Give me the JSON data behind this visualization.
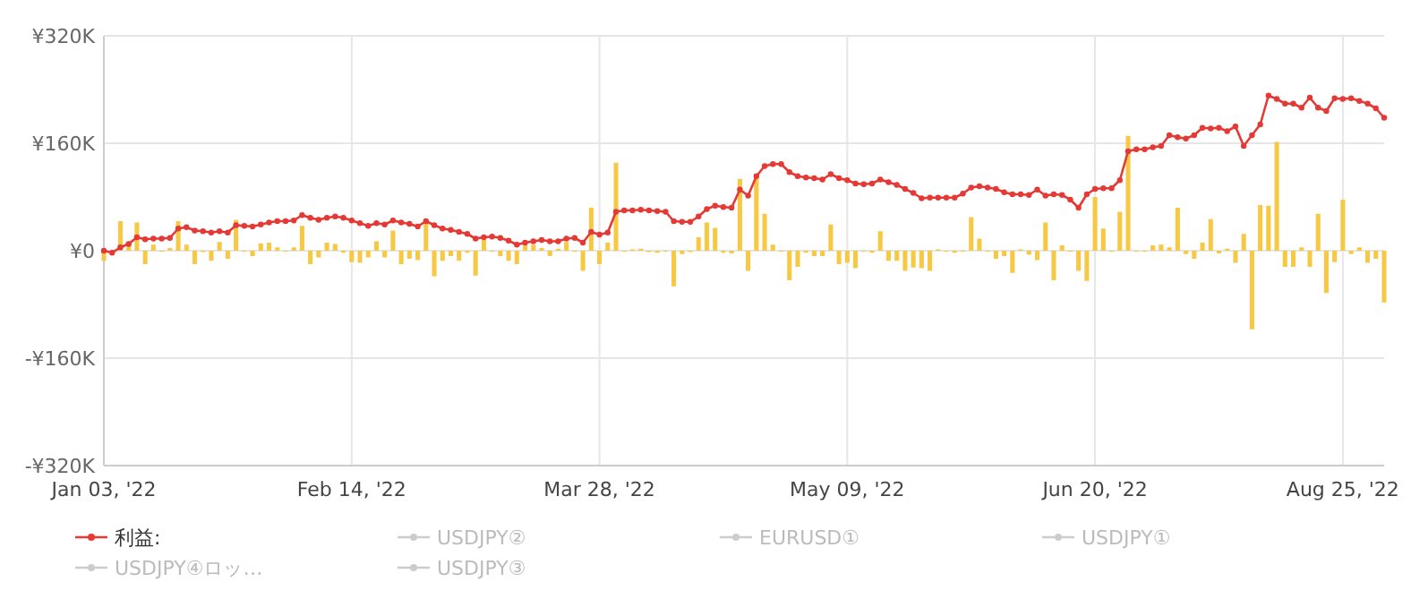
{
  "chart_data": {
    "type": "bar",
    "categories": [
      "Jan 03, '22",
      null,
      null,
      null,
      null,
      null,
      null,
      null,
      null,
      null,
      null,
      null,
      null,
      null,
      null,
      null,
      null,
      null,
      null,
      null,
      null,
      null,
      null,
      null,
      null,
      null,
      null,
      null,
      null,
      null,
      "Feb 14, '22",
      null,
      null,
      null,
      null,
      null,
      null,
      null,
      null,
      null,
      null,
      null,
      null,
      null,
      null,
      null,
      null,
      null,
      null,
      null,
      null,
      null,
      null,
      null,
      null,
      null,
      null,
      null,
      null,
      null,
      "Mar 28, '22",
      null,
      null,
      null,
      null,
      null,
      null,
      null,
      null,
      null,
      null,
      null,
      null,
      null,
      null,
      null,
      null,
      null,
      null,
      null,
      null,
      null,
      null,
      null,
      null,
      null,
      null,
      null,
      null,
      null,
      "May 09, '22",
      null,
      null,
      null,
      null,
      null,
      null,
      null,
      null,
      null,
      null,
      null,
      null,
      null,
      null,
      null,
      null,
      null,
      null,
      null,
      null,
      null,
      null,
      null,
      null,
      null,
      null,
      null,
      null,
      null,
      "Jun 20, '22",
      null,
      null,
      null,
      null,
      null,
      null,
      null,
      null,
      null,
      null,
      null,
      null,
      null,
      null,
      null,
      null,
      null,
      null,
      null,
      null,
      null,
      null,
      null,
      null,
      null,
      null,
      null,
      null,
      null,
      "Aug 25, '22",
      null,
      null,
      null,
      null,
      null
    ],
    "ylim": [
      -320000,
      320000
    ],
    "yticks": [
      {
        "value": -320000,
        "label": "-¥320K"
      },
      {
        "value": -160000,
        "label": "-¥160K"
      },
      {
        "value": 0,
        "label": "¥0"
      },
      {
        "value": 160000,
        "label": "¥160K"
      },
      {
        "value": 320000,
        "label": "¥320K"
      }
    ],
    "grid": true,
    "legend": "bottom",
    "series": [
      {
        "color": "#f7c843",
        "values": [
          -15000,
          0,
          44000,
          10000,
          42000,
          -20000,
          9000,
          0,
          4000,
          44000,
          9000,
          -20000,
          -2000,
          -15000,
          13000,
          -12000,
          46000,
          0,
          -8000,
          11000,
          12000,
          5000,
          0,
          5000,
          37000,
          -20000,
          -10000,
          12000,
          10000,
          -3000,
          -17000,
          -18000,
          -10000,
          14000,
          -10000,
          30000,
          -20000,
          -12000,
          -14000,
          43000,
          -38000,
          -15000,
          -8000,
          -15000,
          -3000,
          -37000,
          16000,
          0,
          -8000,
          -15000,
          -20000,
          11000,
          9000,
          4000,
          -8000,
          3000,
          13000,
          0,
          -30000,
          64000,
          -20000,
          12000,
          131000,
          0,
          2000,
          3000,
          -2000,
          -3000,
          0,
          -53000,
          -5000,
          -2000,
          20000,
          42000,
          34000,
          -3000,
          -4000,
          107000,
          -30000,
          114000,
          55000,
          9000,
          0,
          -44000,
          -24000,
          -3000,
          -8000,
          -8000,
          39000,
          -20000,
          -18000,
          -26000,
          0,
          -3000,
          29000,
          -15000,
          -15000,
          -30000,
          -25000,
          -26000,
          -30000,
          2000,
          0,
          -3000,
          0,
          50000,
          18000,
          0,
          -12000,
          -8000,
          -33000,
          2000,
          -6000,
          -14000,
          42000,
          -44000,
          8000,
          0,
          -30000,
          -45000,
          80000,
          33000,
          0,
          58000,
          171000,
          0,
          0,
          8000,
          9000,
          5000,
          64000,
          -5000,
          -12000,
          12000,
          47000,
          -4000,
          3000,
          -18000,
          25000,
          -117000,
          68000,
          67000,
          162000,
          -24000,
          -24000,
          5000,
          -24000,
          55000,
          -63000,
          -17000,
          76000,
          -5000,
          5000,
          -18000,
          -12000,
          -77000
        ]
      },
      {
        "type": "line",
        "name": "利益:",
        "color": "#e53935",
        "marker": "circle",
        "line_style": "solid",
        "values": [
          0,
          -3000,
          5000,
          10000,
          20000,
          17000,
          18000,
          18000,
          19000,
          33000,
          35000,
          30000,
          29000,
          27000,
          29000,
          27000,
          38000,
          37000,
          36000,
          39000,
          42000,
          44000,
          44000,
          45000,
          53000,
          49000,
          46000,
          49000,
          51000,
          49000,
          45000,
          41000,
          37000,
          41000,
          39000,
          45000,
          42000,
          40000,
          36000,
          44000,
          38000,
          33000,
          31000,
          28000,
          25000,
          18000,
          20000,
          21000,
          19000,
          15000,
          9000,
          12000,
          14000,
          16000,
          14000,
          14000,
          18000,
          19000,
          12000,
          28000,
          24000,
          27000,
          58000,
          60000,
          60000,
          61000,
          60000,
          59000,
          58000,
          44000,
          43000,
          43000,
          51000,
          62000,
          67000,
          65000,
          64000,
          91000,
          82000,
          111000,
          126000,
          129000,
          129000,
          117000,
          111000,
          109000,
          108000,
          106000,
          114000,
          108000,
          105000,
          100000,
          99000,
          100000,
          106000,
          102000,
          98000,
          92000,
          86000,
          78000,
          79000,
          79000,
          79000,
          79000,
          85000,
          94000,
          96000,
          94000,
          92000,
          87000,
          84000,
          84000,
          83000,
          91000,
          82000,
          84000,
          83000,
          76000,
          64000,
          84000,
          92000,
          93000,
          93000,
          105000,
          148000,
          151000,
          151000,
          154000,
          156000,
          172000,
          169000,
          167000,
          172000,
          183000,
          182000,
          183000,
          178000,
          185000,
          156000,
          172000,
          188000,
          231000,
          226000,
          219000,
          219000,
          213000,
          228000,
          213000,
          208000,
          227000,
          226000,
          227000,
          223000,
          219000,
          212000,
          198000
        ]
      },
      {
        "type": "line",
        "name": "USDJPY②",
        "color": "#cccccc",
        "marker": "circle",
        "values": [
          null,
          null,
          null,
          null,
          null,
          null,
          null,
          null,
          null,
          null,
          null,
          null,
          null,
          null,
          null,
          null,
          null,
          null,
          null,
          null,
          null,
          null,
          null,
          null,
          null,
          null,
          null,
          null,
          null,
          null,
          null,
          null,
          null,
          null,
          null,
          null,
          null,
          null,
          null,
          null,
          null,
          null,
          null,
          null,
          null,
          null,
          null,
          null,
          null,
          null,
          null,
          null,
          null,
          null,
          null,
          null,
          null,
          null,
          null,
          null,
          null,
          null,
          null,
          null,
          null,
          null,
          null,
          null,
          null,
          null,
          null,
          null,
          null,
          null,
          null,
          null,
          null,
          null,
          null,
          null,
          null,
          null,
          null,
          null,
          null,
          null,
          null,
          null,
          null,
          null,
          null,
          null,
          null,
          null,
          null,
          null,
          null,
          null,
          null,
          null,
          null,
          null,
          null,
          null,
          null,
          null,
          null,
          null,
          null,
          null,
          null,
          null,
          null,
          null,
          null,
          null,
          null,
          null,
          null,
          null,
          null,
          null,
          null,
          null,
          null,
          null,
          null,
          null,
          null,
          null,
          null,
          null,
          null,
          null,
          null,
          null,
          null,
          null,
          null,
          null,
          null,
          null,
          null,
          null,
          null,
          null,
          null,
          null,
          null,
          null,
          null,
          null,
          null,
          null,
          null,
          null
        ]
      },
      {
        "type": "line",
        "name": "EURUSD①",
        "color": "#cccccc",
        "marker": "circle",
        "values": [
          null,
          null,
          null,
          null,
          null,
          null,
          null,
          null,
          null,
          null,
          null,
          null,
          null,
          null,
          null,
          null,
          null,
          null,
          null,
          null,
          null,
          null,
          null,
          null,
          null,
          null,
          null,
          null,
          null,
          null,
          null,
          null,
          null,
          null,
          null,
          null,
          null,
          null,
          null,
          null,
          null,
          null,
          null,
          null,
          null,
          null,
          null,
          null,
          null,
          null,
          null,
          null,
          null,
          null,
          null,
          null,
          null,
          null,
          null,
          null,
          null,
          null,
          null,
          null,
          null,
          null,
          null,
          null,
          null,
          null,
          null,
          null,
          null,
          null,
          null,
          null,
          null,
          null,
          null,
          null,
          null,
          null,
          null,
          null,
          null,
          null,
          null,
          null,
          null,
          null,
          null,
          null,
          null,
          null,
          null,
          null,
          null,
          null,
          null,
          null,
          null,
          null,
          null,
          null,
          null,
          null,
          null,
          null,
          null,
          null,
          null,
          null,
          null,
          null,
          null,
          null,
          null,
          null,
          null,
          null,
          null,
          null,
          null,
          null,
          null,
          null,
          null,
          null,
          null,
          null,
          null,
          null,
          null,
          null,
          null,
          null,
          null,
          null,
          null,
          null,
          null,
          null,
          null,
          null,
          null,
          null,
          null,
          null,
          null,
          null,
          null,
          null,
          null,
          null,
          null,
          null
        ]
      },
      {
        "type": "line",
        "name": "USDJPY①",
        "color": "#cccccc",
        "marker": "circle",
        "values": [
          null,
          null,
          null,
          null,
          null,
          null,
          null,
          null,
          null,
          null,
          null,
          null,
          null,
          null,
          null,
          null,
          null,
          null,
          null,
          null,
          null,
          null,
          null,
          null,
          null,
          null,
          null,
          null,
          null,
          null,
          null,
          null,
          null,
          null,
          null,
          null,
          null,
          null,
          null,
          null,
          null,
          null,
          null,
          null,
          null,
          null,
          null,
          null,
          null,
          null,
          null,
          null,
          null,
          null,
          null,
          null,
          null,
          null,
          null,
          null,
          null,
          null,
          null,
          null,
          null,
          null,
          null,
          null,
          null,
          null,
          null,
          null,
          null,
          null,
          null,
          null,
          null,
          null,
          null,
          null,
          null,
          null,
          null,
          null,
          null,
          null,
          null,
          null,
          null,
          null,
          null,
          null,
          null,
          null,
          null,
          null,
          null,
          null,
          null,
          null,
          null,
          null,
          null,
          null,
          null,
          null,
          null,
          null,
          null,
          null,
          null,
          null,
          null,
          null,
          null,
          null,
          null,
          null,
          null,
          null,
          null,
          null,
          null,
          null,
          null,
          null,
          null,
          null,
          null,
          null,
          null,
          null,
          null,
          null,
          null,
          null,
          null,
          null,
          null,
          null,
          null,
          null,
          null,
          null,
          null,
          null,
          null,
          null,
          null,
          null,
          null,
          null,
          null,
          null,
          null,
          null
        ]
      },
      {
        "type": "line",
        "name": "USDJPY④ロッ…",
        "color": "#cccccc",
        "marker": "circle",
        "values": [
          null,
          null,
          null,
          null,
          null,
          null,
          null,
          null,
          null,
          null,
          null,
          null,
          null,
          null,
          null,
          null,
          null,
          null,
          null,
          null,
          null,
          null,
          null,
          null,
          null,
          null,
          null,
          null,
          null,
          null,
          null,
          null,
          null,
          null,
          null,
          null,
          null,
          null,
          null,
          null,
          null,
          null,
          null,
          null,
          null,
          null,
          null,
          null,
          null,
          null,
          null,
          null,
          null,
          null,
          null,
          null,
          null,
          null,
          null,
          null,
          null,
          null,
          null,
          null,
          null,
          null,
          null,
          null,
          null,
          null,
          null,
          null,
          null,
          null,
          null,
          null,
          null,
          null,
          null,
          null,
          null,
          null,
          null,
          null,
          null,
          null,
          null,
          null,
          null,
          null,
          null,
          null,
          null,
          null,
          null,
          null,
          null,
          null,
          null,
          null,
          null,
          null,
          null,
          null,
          null,
          null,
          null,
          null,
          null,
          null,
          null,
          null,
          null,
          null,
          null,
          null,
          null,
          null,
          null,
          null,
          null,
          null,
          null,
          null,
          null,
          null,
          null,
          null,
          null,
          null,
          null,
          null,
          null,
          null,
          null,
          null,
          null,
          null,
          null,
          null,
          null,
          null,
          null,
          null,
          null,
          null,
          null,
          null,
          null,
          null,
          null,
          null,
          null,
          null,
          null,
          null
        ]
      },
      {
        "type": "line",
        "name": "USDJPY③",
        "color": "#cccccc",
        "marker": "circle",
        "values": [
          null,
          null,
          null,
          null,
          null,
          null,
          null,
          null,
          null,
          null,
          null,
          null,
          null,
          null,
          null,
          null,
          null,
          null,
          null,
          null,
          null,
          null,
          null,
          null,
          null,
          null,
          null,
          null,
          null,
          null,
          null,
          null,
          null,
          null,
          null,
          null,
          null,
          null,
          null,
          null,
          null,
          null,
          null,
          null,
          null,
          null,
          null,
          null,
          null,
          null,
          null,
          null,
          null,
          null,
          null,
          null,
          null,
          null,
          null,
          null,
          null,
          null,
          null,
          null,
          null,
          null,
          null,
          null,
          null,
          null,
          null,
          null,
          null,
          null,
          null,
          null,
          null,
          null,
          null,
          null,
          null,
          null,
          null,
          null,
          null,
          null,
          null,
          null,
          null,
          null,
          null,
          null,
          null,
          null,
          null,
          null,
          null,
          null,
          null,
          null,
          null,
          null,
          null,
          null,
          null,
          null,
          null,
          null,
          null,
          null,
          null,
          null,
          null,
          null,
          null,
          null,
          null,
          null,
          null,
          null,
          null,
          null,
          null,
          null,
          null,
          null,
          null,
          null,
          null,
          null,
          null,
          null,
          null,
          null,
          null,
          null,
          null,
          null,
          null,
          null,
          null,
          null,
          null,
          null,
          null,
          null,
          null,
          null,
          null,
          null,
          null,
          null,
          null,
          null,
          null,
          null
        ]
      }
    ]
  }
}
